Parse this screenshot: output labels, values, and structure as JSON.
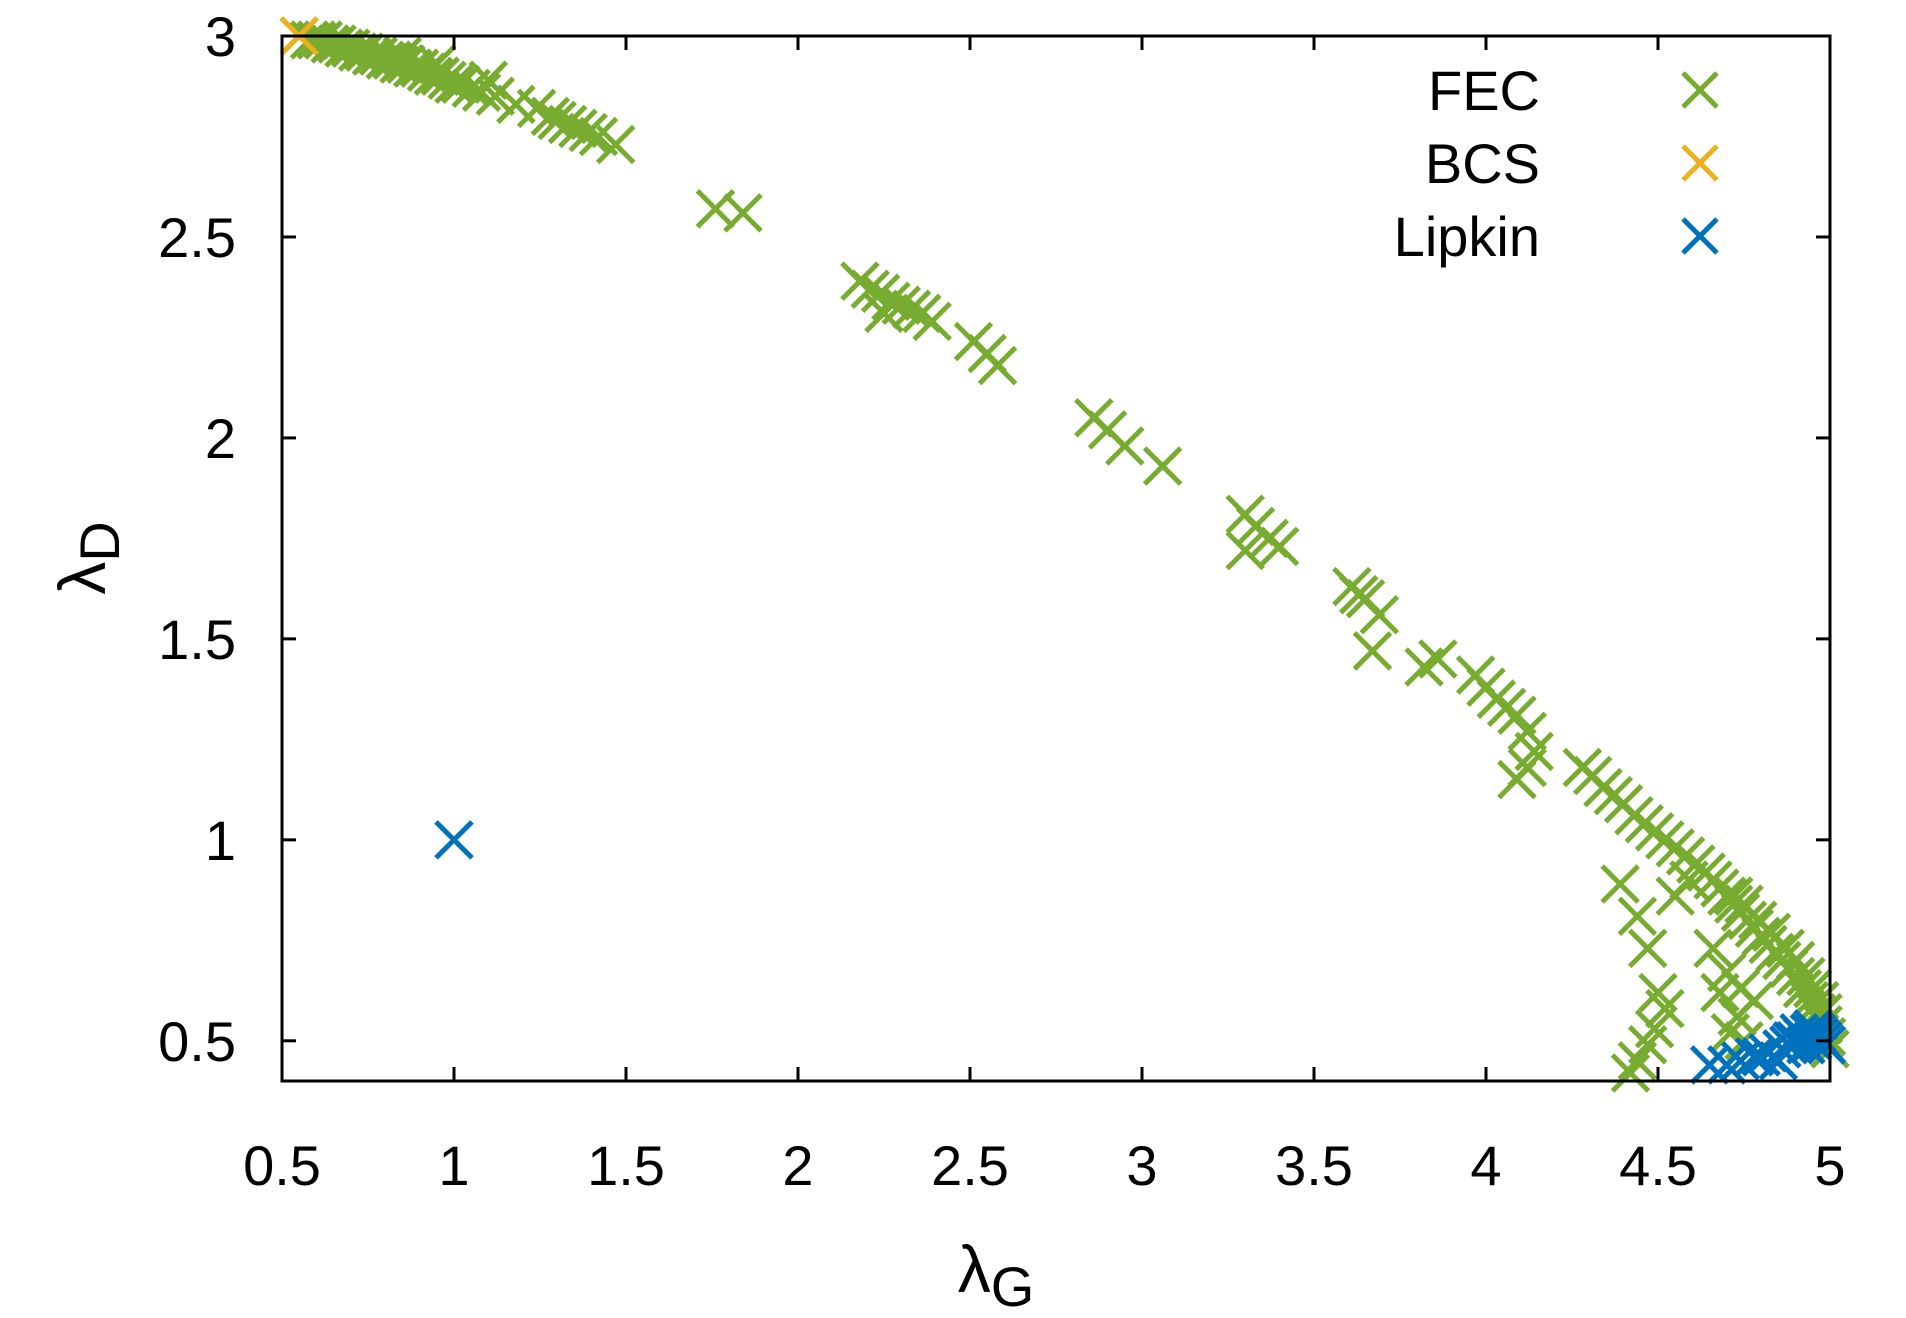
{
  "chart_data": {
    "type": "scatter",
    "title": "",
    "xlabel": {
      "symbol": "λ",
      "subscript": "G"
    },
    "ylabel": {
      "symbol": "λ",
      "subscript": "D"
    },
    "xlim": [
      0.5,
      5
    ],
    "ylim": [
      0.4,
      3
    ],
    "xticks": [
      0.5,
      1,
      1.5,
      2,
      2.5,
      3,
      3.5,
      4,
      4.5,
      5
    ],
    "yticks": [
      0.5,
      1,
      1.5,
      2,
      2.5,
      3
    ],
    "xtick_labels": [
      "0.5",
      "1",
      "1.5",
      "2",
      "2.5",
      "3",
      "3.5",
      "4",
      "4.5",
      "5"
    ],
    "ytick_labels": [
      "0.5",
      "1",
      "1.5",
      "2",
      "2.5",
      "3"
    ],
    "grid": false,
    "legend_position": "top-right",
    "legend": [
      "FEC",
      "BCS",
      "Lipkin"
    ],
    "series": [
      {
        "name": "FEC",
        "marker": "x",
        "color": "#77AC30",
        "points": [
          [
            0.55,
            3.0
          ],
          [
            0.58,
            2.99
          ],
          [
            0.6,
            2.99
          ],
          [
            0.62,
            2.99
          ],
          [
            0.64,
            2.98
          ],
          [
            0.66,
            2.98
          ],
          [
            0.68,
            2.97
          ],
          [
            0.7,
            2.97
          ],
          [
            0.72,
            2.96
          ],
          [
            0.74,
            2.96
          ],
          [
            0.76,
            2.95
          ],
          [
            0.78,
            2.95
          ],
          [
            0.8,
            2.94
          ],
          [
            0.82,
            2.94
          ],
          [
            0.84,
            2.93
          ],
          [
            0.86,
            2.93
          ],
          [
            0.88,
            2.92
          ],
          [
            0.9,
            2.92
          ],
          [
            0.92,
            2.91
          ],
          [
            0.94,
            2.9
          ],
          [
            0.96,
            2.9
          ],
          [
            0.98,
            2.89
          ],
          [
            1.0,
            2.88
          ],
          [
            1.02,
            2.88
          ],
          [
            1.05,
            2.87
          ],
          [
            1.08,
            2.86
          ],
          [
            1.12,
            2.85
          ],
          [
            1.18,
            2.83
          ],
          [
            1.24,
            2.82
          ],
          [
            1.28,
            2.8
          ],
          [
            1.3,
            2.79
          ],
          [
            1.33,
            2.78
          ],
          [
            1.36,
            2.77
          ],
          [
            1.39,
            2.76
          ],
          [
            1.42,
            2.75
          ],
          [
            1.47,
            2.73
          ],
          [
            0.85,
            2.95
          ],
          [
            0.95,
            2.93
          ],
          [
            1.1,
            2.89
          ],
          [
            1.76,
            2.57
          ],
          [
            1.84,
            2.56
          ],
          [
            2.18,
            2.39
          ],
          [
            2.21,
            2.37
          ],
          [
            2.24,
            2.36
          ],
          [
            2.27,
            2.34
          ],
          [
            2.3,
            2.33
          ],
          [
            2.33,
            2.32
          ],
          [
            2.36,
            2.31
          ],
          [
            2.39,
            2.29
          ],
          [
            2.25,
            2.31
          ],
          [
            2.51,
            2.24
          ],
          [
            2.55,
            2.21
          ],
          [
            2.58,
            2.18
          ],
          [
            2.86,
            2.05
          ],
          [
            2.9,
            2.02
          ],
          [
            2.95,
            1.98
          ],
          [
            3.06,
            1.93
          ],
          [
            3.3,
            1.81
          ],
          [
            3.33,
            1.78
          ],
          [
            3.37,
            1.75
          ],
          [
            3.4,
            1.73
          ],
          [
            3.3,
            1.72
          ],
          [
            3.61,
            1.63
          ],
          [
            3.63,
            1.61
          ],
          [
            3.65,
            1.6
          ],
          [
            3.69,
            1.56
          ],
          [
            3.67,
            1.47
          ],
          [
            3.82,
            1.43
          ],
          [
            3.86,
            1.45
          ],
          [
            3.97,
            1.41
          ],
          [
            4.0,
            1.38
          ],
          [
            4.03,
            1.35
          ],
          [
            4.06,
            1.33
          ],
          [
            4.09,
            1.31
          ],
          [
            4.12,
            1.27
          ],
          [
            4.14,
            1.22
          ],
          [
            4.12,
            1.18
          ],
          [
            4.09,
            1.15
          ],
          [
            4.28,
            1.18
          ],
          [
            4.31,
            1.16
          ],
          [
            4.34,
            1.13
          ],
          [
            4.37,
            1.11
          ],
          [
            4.4,
            1.09
          ],
          [
            4.43,
            1.06
          ],
          [
            4.46,
            1.04
          ],
          [
            4.49,
            1.02
          ],
          [
            4.52,
            1.0
          ],
          [
            4.55,
            0.98
          ],
          [
            4.58,
            0.96
          ],
          [
            4.61,
            0.94
          ],
          [
            4.64,
            0.92
          ],
          [
            4.66,
            0.9
          ],
          [
            4.68,
            0.88
          ],
          [
            4.7,
            0.86
          ],
          [
            4.72,
            0.84
          ],
          [
            4.74,
            0.82
          ],
          [
            4.76,
            0.8
          ],
          [
            4.78,
            0.78
          ],
          [
            4.8,
            0.76
          ],
          [
            4.82,
            0.74
          ],
          [
            4.84,
            0.72
          ],
          [
            4.86,
            0.7
          ],
          [
            4.88,
            0.68
          ],
          [
            4.9,
            0.66
          ],
          [
            4.92,
            0.63
          ],
          [
            4.94,
            0.6
          ],
          [
            4.96,
            0.57
          ],
          [
            4.98,
            0.54
          ],
          [
            4.99,
            0.51
          ],
          [
            5.0,
            0.48
          ],
          [
            4.72,
            0.86
          ],
          [
            4.75,
            0.84
          ],
          [
            4.79,
            0.8
          ],
          [
            4.83,
            0.77
          ],
          [
            4.87,
            0.73
          ],
          [
            4.9,
            0.7
          ],
          [
            4.93,
            0.66
          ],
          [
            4.95,
            0.63
          ],
          [
            4.97,
            0.6
          ],
          [
            4.98,
            0.57
          ],
          [
            4.39,
            0.89
          ],
          [
            4.44,
            0.81
          ],
          [
            4.47,
            0.73
          ],
          [
            4.5,
            0.62
          ],
          [
            4.52,
            0.58
          ],
          [
            4.49,
            0.53
          ],
          [
            4.47,
            0.49
          ],
          [
            4.44,
            0.45
          ],
          [
            4.42,
            0.42
          ],
          [
            4.55,
            0.86
          ],
          [
            4.59,
            0.9
          ],
          [
            4.66,
            0.73
          ],
          [
            4.7,
            0.67
          ],
          [
            4.74,
            0.63
          ],
          [
            4.73,
            0.56
          ],
          [
            4.71,
            0.52
          ],
          [
            4.78,
            0.6
          ],
          [
            4.68,
            0.62
          ],
          [
            4.75,
            0.5
          ]
        ]
      },
      {
        "name": "BCS",
        "marker": "x",
        "color": "#EDB120",
        "points": [
          [
            0.55,
            3.0
          ]
        ]
      },
      {
        "name": "Lipkin",
        "marker": "x",
        "color": "#0072BD",
        "points": [
          [
            1.0,
            1.0
          ],
          [
            4.65,
            0.44
          ],
          [
            4.7,
            0.44
          ],
          [
            4.74,
            0.45
          ],
          [
            4.78,
            0.46
          ],
          [
            4.82,
            0.47
          ],
          [
            4.86,
            0.48
          ],
          [
            4.88,
            0.49
          ],
          [
            4.9,
            0.5
          ],
          [
            4.92,
            0.51
          ],
          [
            4.94,
            0.52
          ],
          [
            4.96,
            0.52
          ],
          [
            4.97,
            0.51
          ],
          [
            4.98,
            0.5
          ],
          [
            4.93,
            0.49
          ],
          [
            4.95,
            0.5
          ],
          [
            4.91,
            0.52
          ],
          [
            4.89,
            0.5
          ],
          [
            4.99,
            0.49
          ],
          [
            4.95,
            0.53
          ],
          [
            4.85,
            0.45
          ],
          [
            4.8,
            0.46
          ]
        ]
      }
    ]
  }
}
